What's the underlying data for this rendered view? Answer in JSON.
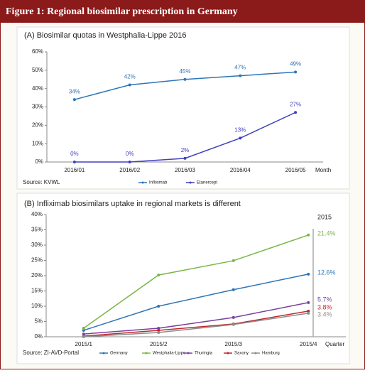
{
  "header": {
    "title": "Figure 1: Regional biosimilar prescription in Germany"
  },
  "chart_data": [
    {
      "type": "line",
      "title": "(A) Biosimilar quotas in Westphalia-Lippe 2016",
      "categories": [
        "2016/01",
        "2016/02",
        "2016/03",
        "2016/04",
        "2016/05"
      ],
      "x_label": "Month",
      "ylim": [
        0,
        60
      ],
      "yticks": [
        {
          "value": 0,
          "label": "0%"
        },
        {
          "value": 10,
          "label": "10%"
        },
        {
          "value": 20,
          "label": "20%"
        },
        {
          "value": 30,
          "label": "30%"
        },
        {
          "value": 40,
          "label": "40%"
        },
        {
          "value": 50,
          "label": "50%"
        },
        {
          "value": 60,
          "label": "60%"
        }
      ],
      "series": [
        {
          "name": "Infliximab",
          "color": "#2e75b6",
          "values": [
            34,
            42,
            45,
            47,
            49
          ],
          "value_labels": [
            "34%",
            "42%",
            "45%",
            "47%",
            "49%"
          ]
        },
        {
          "name": "Etanercept",
          "color": "#4040bf",
          "values": [
            0,
            0,
            2,
            13,
            27
          ],
          "value_labels": [
            "0%",
            "0%",
            "2%",
            "13%",
            "27%"
          ]
        }
      ],
      "source": "Source: KVWL"
    },
    {
      "type": "line",
      "title": "(B) Infliximab biosimilars uptake in regional markets is different",
      "categories": [
        "2015/1",
        "2015/2",
        "2015/3",
        "2015/4"
      ],
      "x_label": "Quarter",
      "ylim": [
        0,
        40
      ],
      "yticks": [
        {
          "value": 0,
          "label": "0%"
        },
        {
          "value": 5,
          "label": "5%"
        },
        {
          "value": 10,
          "label": "10%"
        },
        {
          "value": 15,
          "label": "15%"
        },
        {
          "value": 20,
          "label": "20%"
        },
        {
          "value": 25,
          "label": "25%"
        },
        {
          "value": 30,
          "label": "30%"
        },
        {
          "value": 35,
          "label": "35%"
        },
        {
          "value": 40,
          "label": "40%"
        }
      ],
      "annotation_header": "2015",
      "series": [
        {
          "name": "Germany",
          "color": "#2e75b6",
          "values": [
            2.1,
            10,
            15.4,
            20.5
          ],
          "annotation": "12.6%"
        },
        {
          "name": "Westphalia-Lippe",
          "color": "#7ab648",
          "values": [
            2.8,
            20.2,
            24.9,
            33.3
          ],
          "annotation": "21.4%"
        },
        {
          "name": "Thuringia",
          "color": "#7b3f9e",
          "values": [
            0.9,
            2.8,
            6.3,
            11.2
          ],
          "annotation": "5.7%"
        },
        {
          "name": "Saxony",
          "color": "#c0282d",
          "values": [
            0.2,
            2.1,
            4.2,
            8.4
          ],
          "annotation": "3.8%"
        },
        {
          "name": "Hamburg",
          "color": "#8c8c8c",
          "values": [
            0,
            1.4,
            4,
            7.7
          ],
          "annotation": "3.4%"
        }
      ],
      "source": "Source: ZI-AVD-Portal"
    }
  ]
}
